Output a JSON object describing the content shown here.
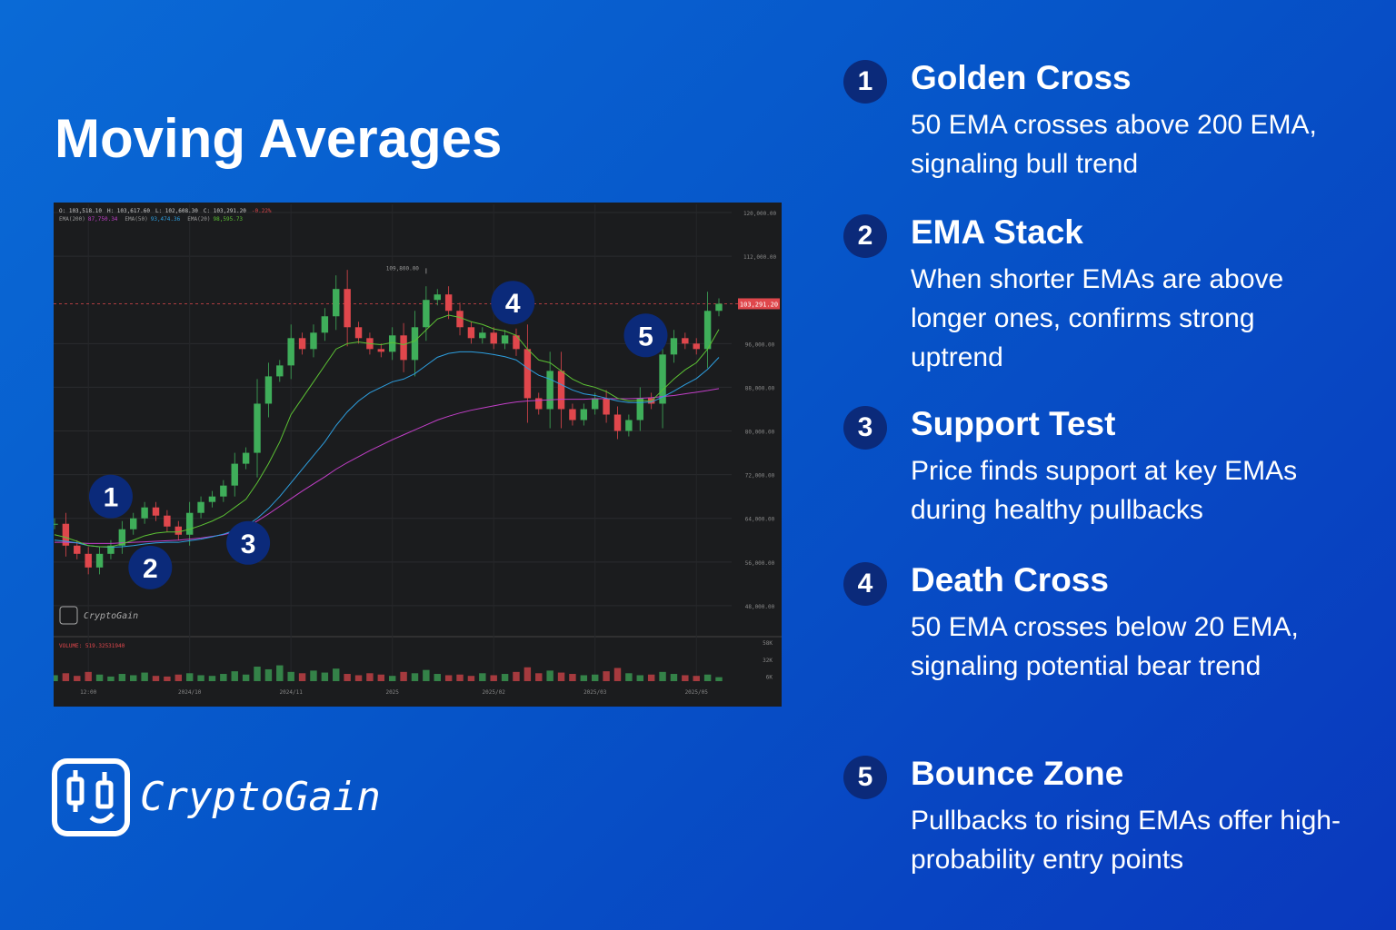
{
  "title": "Moving Averages",
  "brand": "CryptoGain",
  "items": [
    {
      "number": "1",
      "heading": "Golden Cross",
      "text": "50 EMA crosses above 200 EMA, signaling bull trend"
    },
    {
      "number": "2",
      "heading": "EMA Stack",
      "text": "When shorter EMAs are above longer ones, confirms strong uptrend"
    },
    {
      "number": "3",
      "heading": "Support Test",
      "text": "Price finds support at key EMAs during healthy pullbacks"
    },
    {
      "number": "4",
      "heading": "Death Cross",
      "text": "50 EMA crosses below 20 EMA, signaling potential bear trend"
    },
    {
      "number": "5",
      "heading": "Bounce Zone",
      "text": "Pullbacks to rising EMAs offer high-probability entry points"
    }
  ],
  "chart_data": {
    "type": "candlestick",
    "header": [
      "O: 103,518.10",
      "H: 103,617.60",
      "L: 102,608.30",
      "C: 103,291.20",
      "-0.22%"
    ],
    "watermark": "CryptoGain",
    "high_label": "109,800.00",
    "price_label": "103,291.20",
    "volume_label": "VOLUME: 519.32531940",
    "up_color": "#3fae5a",
    "down_color": "#e0474c",
    "close": [
      63000,
      59000,
      57500,
      55000,
      57500,
      59000,
      62000,
      64000,
      66000,
      64500,
      62500,
      61000,
      65000,
      67000,
      68000,
      70000,
      74000,
      76000,
      85000,
      90000,
      92000,
      97000,
      95000,
      98000,
      101000,
      106000,
      99000,
      97000,
      95000,
      94500,
      97500,
      93000,
      99000,
      104000,
      105000,
      102000,
      99000,
      97000,
      98000,
      96000,
      97500,
      95000,
      86000,
      84000,
      91000,
      84000,
      82000,
      84000,
      86000,
      83000,
      80000,
      82000,
      86000,
      85000,
      94000,
      97000,
      96000,
      95000,
      102000,
      103291.2
    ],
    "series": [
      {
        "name": "EMA(200)",
        "value_label": "87,750.34",
        "color": "#c23fc8",
        "values": [
          59600,
          59600,
          59500,
          59400,
          59400,
          59400,
          59500,
          59600,
          59700,
          59800,
          59900,
          60000,
          60200,
          60400,
          60700,
          61000,
          61500,
          62300,
          63500,
          64800,
          66200,
          67600,
          69000,
          70300,
          71600,
          73000,
          74200,
          75300,
          76400,
          77400,
          78400,
          79300,
          80200,
          81100,
          82000,
          82700,
          83300,
          83800,
          84200,
          84600,
          85000,
          85300,
          85500,
          85600,
          85700,
          85800,
          85800,
          85800,
          85900,
          85900,
          85900,
          85900,
          86000,
          86100,
          86300,
          86500,
          86800,
          87100,
          87400,
          87750.34
        ]
      },
      {
        "name": "EMA(50)",
        "value_label": "93,474.36",
        "color": "#2d9fe0",
        "values": [
          60000,
          59800,
          59500,
          59000,
          58800,
          58700,
          58800,
          59000,
          59300,
          59500,
          59600,
          59600,
          59900,
          60200,
          60600,
          61100,
          61800,
          62600,
          64000,
          65800,
          68000,
          70500,
          73000,
          75500,
          78000,
          81000,
          83500,
          85500,
          87000,
          88000,
          89000,
          89500,
          90500,
          92000,
          93500,
          94200,
          94500,
          94500,
          94300,
          94000,
          93600,
          93000,
          91500,
          90200,
          89500,
          88500,
          87500,
          86800,
          86500,
          86000,
          85500,
          85200,
          85200,
          85300,
          86200,
          87300,
          88500,
          89600,
          91300,
          93474.36
        ]
      },
      {
        "name": "EMA(20)",
        "value_label": "98,595.73",
        "color": "#5cc234",
        "values": [
          61000,
          60500,
          59800,
          59000,
          58800,
          58800,
          59300,
          60000,
          60800,
          61300,
          61500,
          61500,
          62000,
          62700,
          63500,
          64500,
          66000,
          67500,
          70500,
          74000,
          78000,
          83000,
          86000,
          89000,
          92000,
          95000,
          96000,
          96300,
          96000,
          95800,
          96200,
          95800,
          96500,
          98500,
          100500,
          101200,
          100800,
          100000,
          99500,
          98700,
          98300,
          97500,
          95000,
          93000,
          92500,
          91000,
          89500,
          88500,
          88000,
          87200,
          86000,
          85500,
          85600,
          85500,
          87500,
          89500,
          91200,
          92500,
          95000,
          98595.73
        ]
      }
    ],
    "volume": [
      9000,
      12000,
      8000,
      14000,
      10000,
      7000,
      11000,
      9000,
      13000,
      8000,
      7000,
      10000,
      12000,
      9000,
      8000,
      11000,
      15000,
      10000,
      22000,
      18000,
      24000,
      14000,
      12000,
      16000,
      13000,
      19000,
      11000,
      9000,
      12000,
      10000,
      8000,
      14000,
      12000,
      17000,
      11000,
      9000,
      10000,
      8000,
      12000,
      9000,
      11000,
      14000,
      21000,
      12000,
      16000,
      13000,
      11000,
      9000,
      10000,
      15000,
      20000,
      12000,
      9000,
      10000,
      14000,
      11000,
      9000,
      8000,
      10000,
      6000
    ],
    "vlim": [
      0,
      62000
    ],
    "vticks": [
      {
        "value": 58000,
        "label": "58K"
      },
      {
        "value": 32000,
        "label": "32K"
      },
      {
        "value": 6000,
        "label": "6K"
      }
    ],
    "ylim": [
      42500,
      121500
    ],
    "yticks": [
      {
        "value": 120000,
        "label": "120,000.00"
      },
      {
        "value": 112000,
        "label": "112,000.00"
      },
      {
        "value": 96000,
        "label": "96,000.00"
      },
      {
        "value": 88000,
        "label": "88,000.00"
      },
      {
        "value": 80000,
        "label": "80,000.00"
      },
      {
        "value": 72000,
        "label": "72,000.00"
      },
      {
        "value": 64000,
        "label": "64,000.00"
      },
      {
        "value": 56000,
        "label": "56,000.00"
      },
      {
        "value": 48000,
        "label": "48,000.00"
      }
    ],
    "high_index": 33,
    "high_value": 109800,
    "xlim": [
      0,
      59
    ],
    "xticks": [
      {
        "value": 3,
        "label": "12:00"
      },
      {
        "value": 12,
        "label": "2024/10"
      },
      {
        "value": 21,
        "label": "2024/11"
      },
      {
        "value": 30,
        "label": "2025"
      },
      {
        "value": 39,
        "label": "2025/02"
      },
      {
        "value": 48,
        "label": "2025/03"
      },
      {
        "value": 57,
        "label": "2025/05"
      }
    ],
    "markers": [
      {
        "item": 0,
        "index": 5,
        "value": 68000
      },
      {
        "item": 1,
        "index": 8.5,
        "value": 55000
      },
      {
        "item": 2,
        "index": 17.2,
        "value": 59500
      },
      {
        "item": 3,
        "index": 40.7,
        "value": 103500
      },
      {
        "item": 4,
        "index": 52.5,
        "value": 97500
      }
    ]
  }
}
